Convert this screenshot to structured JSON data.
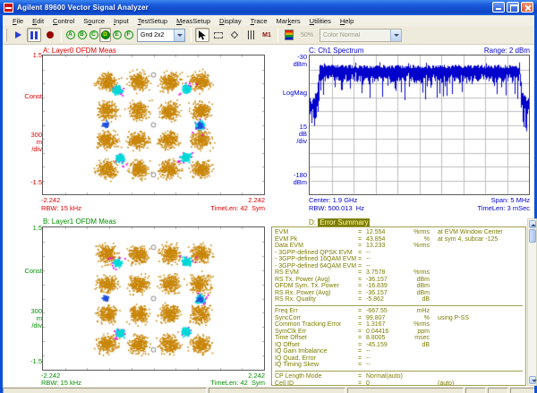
{
  "window": {
    "title": "Agilent 89600 Vector Signal Analyzer"
  },
  "menu": {
    "items": [
      {
        "label": "File",
        "hot": 0
      },
      {
        "label": "Edit",
        "hot": 0
      },
      {
        "label": "Control",
        "hot": 0
      },
      {
        "label": "Source",
        "hot": 1
      },
      {
        "label": "Input",
        "hot": 0
      },
      {
        "label": "TestSetup",
        "hot": 0
      },
      {
        "label": "MeasSetup",
        "hot": 0
      },
      {
        "label": "Display",
        "hot": 0
      },
      {
        "label": "Trace",
        "hot": 0
      },
      {
        "label": "Markers",
        "hot": 3
      },
      {
        "label": "Utilities",
        "hot": 0
      },
      {
        "label": "Help",
        "hot": 0
      }
    ]
  },
  "toolbar": {
    "trace_buttons": [
      "A",
      "B",
      "C",
      "D",
      "E",
      "F"
    ],
    "selected_trace": "D",
    "grid_combo": "Grid 2x2",
    "marker_tool_label": "M1",
    "zoom_label": "50%",
    "color_combo": "Color Normal"
  },
  "panes": {
    "a": {
      "title": "A: Layer0 OFDM Meas",
      "color": "#e00000",
      "y_top": "1.5",
      "y_mid": "Const",
      "y_scale": "300\nm\n/div",
      "y_bottom": "-1.5",
      "x_left": "-2.242",
      "x_right": "2.242",
      "footer_left": "RBW: 15 kHz",
      "footer_right": "TimeLen: 42  Sym"
    },
    "b": {
      "title": "B: Layer1 OFDM Meas",
      "color": "#009000",
      "y_top": "1.5",
      "y_mid": "Const",
      "y_scale": "300\nm\n/div",
      "y_bottom": "-1.5",
      "x_left": "-2.242",
      "x_right": "2.242",
      "footer_left": "RBW: 15 kHz",
      "footer_right": "TimeLen: 42  Sym"
    },
    "c": {
      "title": "C: Ch1 Spectrum",
      "color": "#0000d8",
      "range_label": "Range: 2 dBm",
      "y_top": "-30\ndBm",
      "y_mid": "LogMag",
      "y_scale": "15\ndB\n/div",
      "y_bottom": "-180\ndBm",
      "footer_l1": "Center: 1.9 GHz",
      "footer_r1": "Span: 5 MHz",
      "footer_l2": "RBW: 500.013  Hz",
      "footer_r2": "TimeLen: 3 mSec"
    },
    "d": {
      "title_prefix": "D: ",
      "title": "Error Summary",
      "color": "#7d7d00",
      "highlight_bg": "#7d7d00",
      "highlight_fg": "#ffffb0",
      "rows": [
        {
          "name": "EVM",
          "value": "12.554",
          "unit": "%rms",
          "extra": "at   EVM Window Center"
        },
        {
          "name": "EVM Pk",
          "value": "43.854",
          "unit": "%",
          "extra": "at  sym 4,  subcar  -125"
        },
        {
          "name": "Data EVM",
          "value": "13.233",
          "unit": "%rms",
          "extra": ""
        },
        {
          "name": "- 3GPP-defined QPSK EVM",
          "value": "--",
          "unit": "",
          "extra": ""
        },
        {
          "name": "- 3GPP-defined 16QAM EVM",
          "value": "--",
          "unit": "",
          "extra": ""
        },
        {
          "name": "- 3GPP-defined 64QAM EVM",
          "value": "--",
          "unit": "",
          "extra": ""
        },
        {
          "name": "RS EVM",
          "value": "3.7578",
          "unit": "%rms",
          "extra": ""
        },
        {
          "name": "RS Tx. Power (Avg)",
          "value": "-36.157",
          "unit": "dBm",
          "extra": ""
        },
        {
          "name": "OFDM Sym. Tx. Power",
          "value": "-16.839",
          "unit": "dBm",
          "extra": ""
        },
        {
          "name": "RS Rx. Power (Avg)",
          "value": "-36.157",
          "unit": "dBm",
          "extra": ""
        },
        {
          "name": "RS Rx. Quality",
          "value": "-5.862",
          "unit": "dB",
          "extra": ""
        },
        {
          "sep": true
        },
        {
          "name": "Freq Err",
          "value": "-667.55",
          "unit": "mHz",
          "extra": ""
        },
        {
          "name": "SyncCorr",
          "value": "99.807",
          "unit": "%",
          "extra": "using   P-SS"
        },
        {
          "name": "Common Tracking Error",
          "value": "1.3167",
          "unit": "%rms",
          "extra": ""
        },
        {
          "name": "SymClk Err",
          "value": "0.04416",
          "unit": "ppm",
          "extra": ""
        },
        {
          "name": "Time Offset",
          "value": "8.8005",
          "unit": "msec",
          "extra": ""
        },
        {
          "name": "IQ Offset",
          "value": "-45.159",
          "unit": "dB",
          "extra": ""
        },
        {
          "name": "IQ Gain Imbalance",
          "value": "--",
          "unit": "",
          "extra": ""
        },
        {
          "name": "IQ Quad. Error",
          "value": "--",
          "unit": "",
          "extra": ""
        },
        {
          "name": "IQ Timing Skew",
          "value": "--",
          "unit": "",
          "extra": ""
        },
        {
          "sep": true
        },
        {
          "name": "CP Length Mode",
          "value": "Normal(auto)",
          "unit": "",
          "extra": ""
        },
        {
          "name": "Cell ID",
          "value": "0",
          "unit": "",
          "extra": "(auto)"
        }
      ]
    }
  },
  "charts": {
    "constellation": {
      "x_range": 2.242,
      "y_range": 1.5,
      "symbol_levels": [
        -0.949,
        -0.316,
        0.316,
        0.949
      ],
      "cluster_std": 0.095,
      "points_per_cluster": 240,
      "data_color": "#c8860a",
      "pilot_clusters": [
        [
          -0.74,
          0.77
        ],
        [
          0.66,
          0.79
        ],
        [
          -0.69,
          -0.71
        ],
        [
          0.64,
          -0.69
        ],
        [
          0.93,
          0.0
        ]
      ],
      "pilot_std": 0.04,
      "pilot_points": 110,
      "pilot_color": "#00d8d8",
      "magenta_color": "#e800e8",
      "blue_clusters": [
        [
          -0.98,
          0.02
        ],
        [
          0.93,
          0.0
        ]
      ],
      "blue_color": "#2050dd",
      "ref_circles": [
        [
          0,
          1.08
        ],
        [
          0,
          0
        ],
        [
          0,
          -1.08
        ]
      ],
      "ref_color": "#808080"
    },
    "spectrum": {
      "top_dbm": -30,
      "db_per_div": 15,
      "divs": 10,
      "band_top_dbm": -42,
      "band_start": 0.045,
      "band_end": 0.955,
      "trace_color": "#0000cc",
      "grid_color": "#bdbdbd"
    }
  }
}
